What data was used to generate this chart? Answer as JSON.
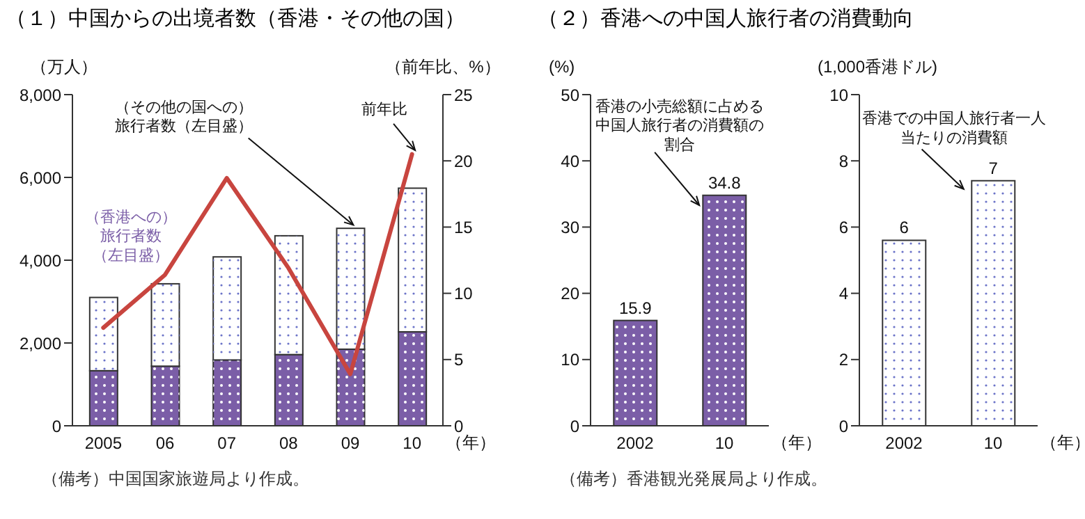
{
  "chart_data": [
    {
      "type": "bar",
      "title": "（１）中国からの出境者数（香港・その他の国）",
      "ylabel": "（万人）",
      "y2label": "（前年比、%）",
      "xlabel": "（年）",
      "categories": [
        "2005",
        "06",
        "07",
        "08",
        "09",
        "10"
      ],
      "stacked": true,
      "legend": false,
      "grid": false,
      "marker": "none",
      "line_style": "solid",
      "series": [
        {
          "name": "（香港への）旅行者数（左目盛）",
          "color": "#7b5ea7",
          "values": [
            1330,
            1440,
            1590,
            1720,
            1850,
            2270
          ]
        },
        {
          "name": "（その他の国への）旅行者数（左目盛）",
          "color": "#ffffff",
          "values": [
            1770,
            1990,
            2490,
            2870,
            2920,
            3470
          ]
        },
        {
          "name": "前年比",
          "type": "line",
          "axis": "y2",
          "color": "#c8453f",
          "values": [
            7.4,
            11.4,
            18.7,
            11.9,
            3.9,
            20.5
          ]
        }
      ],
      "ylim": [
        0,
        8000
      ],
      "yticks": [
        0,
        {
          "value": 2000,
          "label": "2,000"
        },
        {
          "value": 4000,
          "label": "4,000"
        },
        {
          "value": 6000,
          "label": "6,000"
        },
        {
          "value": 8000,
          "label": "8,000"
        }
      ],
      "y2lim": [
        0,
        25
      ],
      "y2ticks": [
        0,
        5,
        10,
        15,
        20,
        25
      ],
      "annotations": [
        "（備考）中国国家旅遊局より作成。"
      ]
    },
    {
      "type": "bar",
      "title": "（２）香港への中国人旅行者の消費動向",
      "ylabel": "(%)",
      "xlabel": "（年）",
      "categories": [
        "2002",
        "10"
      ],
      "legend": false,
      "grid": false,
      "data_labels": true,
      "series": [
        {
          "name": "香港の小売総額に占める中国人旅行者の消費額の割合",
          "color": "#7b5ea7",
          "values": [
            15.9,
            34.8
          ]
        }
      ],
      "ylim": [
        0,
        50
      ],
      "yticks": [
        0,
        10,
        20,
        30,
        40,
        50
      ],
      "annotations": [
        "（備考）香港観光発展局より作成。"
      ]
    },
    {
      "type": "bar",
      "ylabel": "(1,000香港ドル)",
      "xlabel": "（年）",
      "categories": [
        "2002",
        "10"
      ],
      "legend": false,
      "grid": false,
      "series": [
        {
          "name": "香港での中国人旅行者一人当たりの消費額",
          "color": "#ffffff",
          "values": [
            5.6,
            7.4
          ],
          "value_labels": [
            "6",
            "7"
          ]
        }
      ],
      "ylim": [
        0,
        10
      ],
      "yticks": [
        0,
        2,
        4,
        6,
        8,
        10
      ]
    }
  ]
}
